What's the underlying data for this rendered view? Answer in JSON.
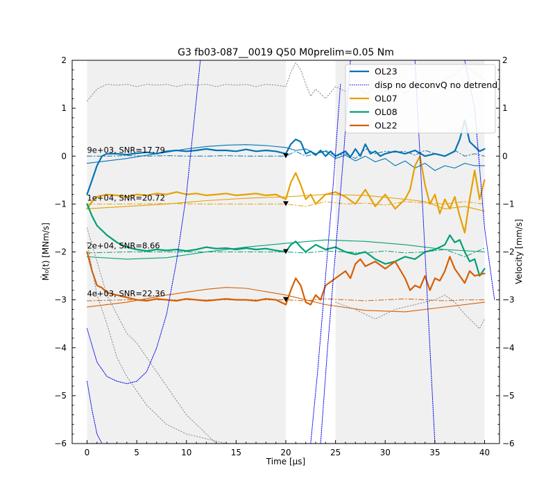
{
  "chart_data": {
    "type": "line",
    "title": "G3 fb03-087__0019 Q50 M0prelim=0.05 Nm",
    "xlabel": "Time [μs]",
    "ylabel_left": "Ṁ₀(t) [MNm/s]",
    "ylabel_right": "Velocity [mm/s]",
    "xlim": [
      -1.5,
      41.5
    ],
    "ylim": [
      -6,
      2
    ],
    "x_ticks": [
      "0",
      "5",
      "10",
      "15",
      "20",
      "25",
      "30",
      "35",
      "40"
    ],
    "y_ticks": [
      "−6",
      "−5",
      "−4",
      "−3",
      "−2",
      "−1",
      "0",
      "1",
      "2"
    ],
    "shaded_regions": [
      [
        0,
        20
      ],
      [
        25,
        40
      ]
    ],
    "legend": [
      "OL23",
      "disp no deconvQ no detrend",
      "OL07",
      "OL08",
      "OL22"
    ],
    "legend_position": "top-right",
    "colors": {
      "OL23": "#0072b2",
      "OL07": "#e69f00",
      "OL08": "#009e73",
      "OL22": "#d55e00",
      "disp": "#0000ee",
      "grey": "#888888",
      "shade": "#f0f0f0"
    },
    "annotations": [
      {
        "text": "9e+03, SNR=17.79",
        "x": 0,
        "y": 0.1
      },
      {
        "text": "1e+04, SNR=20.72",
        "x": 0,
        "y": -0.9
      },
      {
        "text": "2e+04, SNR=8.66",
        "x": 0,
        "y": -1.9
      },
      {
        "text": "4e+03, SNR=22.36",
        "x": 0,
        "y": -2.9
      }
    ],
    "markers": [
      {
        "x": 20,
        "y": 0
      },
      {
        "x": 20,
        "y": -1
      },
      {
        "x": 20,
        "y": -2
      },
      {
        "x": 20,
        "y": -3
      }
    ],
    "series": [
      {
        "name": "OL23",
        "color": "#0072b2",
        "width": 2.2,
        "dash": "",
        "x": [
          0,
          0.5,
          1,
          1.5,
          2,
          3,
          4,
          5,
          6,
          7,
          8,
          9,
          10,
          11,
          12,
          13,
          14,
          15,
          16,
          17,
          18,
          19,
          20,
          20.5,
          21,
          21.5,
          22,
          22.5,
          23,
          23.5,
          24,
          24.5,
          25,
          25.5,
          26,
          26.5,
          27,
          27.5,
          28,
          28.5,
          29,
          29.5,
          30,
          31,
          32,
          33,
          34,
          35,
          36,
          37,
          37.5,
          38,
          38.5,
          39,
          39.5,
          40
        ],
        "y": [
          -0.8,
          -0.5,
          -0.2,
          0,
          0.05,
          0.05,
          0.03,
          0.06,
          0.08,
          0.05,
          0.1,
          0.12,
          0.1,
          0.12,
          0.15,
          0.12,
          0.12,
          0.1,
          0.14,
          0.1,
          0.12,
          0.1,
          0.05,
          0.25,
          0.35,
          0.3,
          0.05,
          0.1,
          0.02,
          0.12,
          0.0,
          0.1,
          0.0,
          0.05,
          0.1,
          -0.02,
          0.15,
          0.0,
          0.25,
          0.05,
          0.1,
          0.0,
          0.05,
          0.1,
          0.05,
          0.12,
          0.0,
          0.05,
          0.0,
          0.1,
          0.35,
          0.75,
          0.3,
          0.2,
          0.1,
          0.15
        ]
      },
      {
        "name": "",
        "color": "#0072b2",
        "width": 1.1,
        "dash": "",
        "x": [
          0,
          2,
          4,
          6,
          8,
          10,
          12,
          14,
          16,
          18,
          20,
          21,
          22,
          23,
          24,
          25,
          26,
          27,
          28,
          29,
          30,
          31,
          32,
          33,
          34,
          35,
          36,
          37,
          38,
          39,
          40
        ],
        "y": [
          -0.15,
          -0.1,
          -0.05,
          0.02,
          0.08,
          0.15,
          0.2,
          0.23,
          0.24,
          0.22,
          0.18,
          0.12,
          0.15,
          0.05,
          0.1,
          -0.05,
          0.02,
          -0.1,
          0.0,
          -0.12,
          -0.05,
          -0.2,
          -0.1,
          -0.25,
          -0.15,
          -0.3,
          -0.2,
          -0.25,
          -0.15,
          -0.2,
          -0.2
        ]
      },
      {
        "name": "",
        "color": "#0072b2",
        "width": 1.0,
        "dash": "7,3,1.5,3",
        "x": [
          0,
          2,
          4,
          6,
          8,
          10,
          12,
          14,
          16,
          18,
          20,
          21,
          22,
          23,
          24,
          25,
          26,
          27,
          28,
          29,
          30,
          31,
          32,
          33,
          34,
          35,
          36,
          37,
          38,
          39,
          40
        ],
        "y": [
          0.0,
          0.0,
          0.01,
          0.0,
          0.01,
          0.0,
          0.0,
          0.01,
          0.0,
          0.0,
          0.0,
          0.1,
          0.0,
          0.05,
          0.12,
          0.0,
          0.05,
          -0.05,
          0.15,
          0.05,
          0.1,
          0.08,
          0.1,
          0.02,
          0.12,
          0.05,
          0.0,
          0.12,
          0.0,
          0.05,
          0.0
        ]
      },
      {
        "name": "OL07",
        "color": "#e69f00",
        "width": 2.2,
        "dash": "",
        "x": [
          0,
          0.5,
          1,
          2,
          3,
          4,
          5,
          6,
          7,
          8,
          9,
          10,
          11,
          12,
          13,
          14,
          15,
          16,
          17,
          18,
          19,
          20,
          20.5,
          21,
          21.5,
          22,
          22.5,
          23,
          24,
          25,
          26,
          27,
          28,
          29,
          30,
          31,
          32,
          32.5,
          33,
          33.5,
          34,
          34.5,
          35,
          35.5,
          36,
          36.5,
          37,
          37.5,
          38,
          38.5,
          39,
          39.5,
          40
        ],
        "y": [
          -1.1,
          -0.95,
          -0.85,
          -0.8,
          -0.82,
          -0.85,
          -0.8,
          -0.82,
          -0.78,
          -0.8,
          -0.75,
          -0.8,
          -0.78,
          -0.82,
          -0.8,
          -0.78,
          -0.82,
          -0.8,
          -0.78,
          -0.82,
          -0.8,
          -0.9,
          -0.55,
          -0.35,
          -0.6,
          -0.9,
          -0.8,
          -1.0,
          -0.8,
          -0.75,
          -0.85,
          -1.0,
          -0.7,
          -1.05,
          -0.8,
          -1.1,
          -0.9,
          -0.7,
          -0.2,
          0.0,
          -0.6,
          -1.0,
          -0.8,
          -1.2,
          -0.9,
          -1.1,
          -0.85,
          -1.25,
          -1.6,
          -0.9,
          -0.3,
          -0.9,
          -0.5
        ]
      },
      {
        "name": "",
        "color": "#e69f00",
        "width": 1.1,
        "dash": "",
        "x": [
          0,
          4,
          8,
          12,
          16,
          20,
          24,
          28,
          32,
          34,
          36,
          38,
          40
        ],
        "y": [
          -1.1,
          -1.05,
          -1.0,
          -0.93,
          -0.88,
          -0.85,
          -0.8,
          -0.82,
          -0.9,
          -0.95,
          -1.1,
          -1.05,
          -1.15
        ]
      },
      {
        "name": "",
        "color": "#e69f00",
        "width": 1.0,
        "dash": "7,3,1.5,3",
        "x": [
          0,
          4,
          8,
          12,
          16,
          20,
          22,
          24,
          26,
          28,
          30,
          32,
          34,
          36,
          38,
          40
        ],
        "y": [
          -1.0,
          -1.0,
          -0.99,
          -1.0,
          -1.0,
          -1.0,
          -1.05,
          -0.95,
          -1.0,
          -0.98,
          -1.02,
          -0.95,
          -0.98,
          -1.0,
          -0.95,
          -1.0
        ]
      },
      {
        "name": "OL08",
        "color": "#009e73",
        "width": 2.2,
        "dash": "",
        "x": [
          0,
          0.5,
          1,
          2,
          3,
          4,
          5,
          6,
          7,
          8,
          9,
          10,
          11,
          12,
          13,
          14,
          15,
          16,
          17,
          18,
          19,
          20,
          20.5,
          21,
          21.5,
          22,
          23,
          24,
          25,
          26,
          27,
          28,
          29,
          30,
          31,
          32,
          33,
          34,
          35,
          36,
          36.5,
          37,
          37.5,
          38,
          38.5,
          39,
          39.5,
          40
        ],
        "y": [
          -1.0,
          -1.25,
          -1.45,
          -1.65,
          -1.8,
          -1.9,
          -1.95,
          -1.98,
          -1.95,
          -1.97,
          -1.95,
          -1.98,
          -1.95,
          -1.9,
          -1.93,
          -1.92,
          -1.95,
          -1.92,
          -1.95,
          -1.93,
          -1.97,
          -2.0,
          -1.85,
          -1.78,
          -1.9,
          -2.0,
          -1.85,
          -1.95,
          -1.9,
          -2.0,
          -2.05,
          -2.0,
          -2.15,
          -2.25,
          -2.2,
          -2.1,
          -2.15,
          -2.0,
          -1.95,
          -1.85,
          -1.65,
          -1.8,
          -1.75,
          -2.0,
          -2.2,
          -2.15,
          -2.5,
          -2.35
        ]
      },
      {
        "name": "",
        "color": "#009e73",
        "width": 1.1,
        "dash": "",
        "x": [
          0,
          4,
          8,
          12,
          16,
          20,
          24,
          28,
          32,
          36,
          40
        ],
        "y": [
          -2.1,
          -2.15,
          -2.12,
          -2.0,
          -1.9,
          -1.82,
          -1.75,
          -1.78,
          -1.85,
          -1.95,
          -2.0
        ]
      },
      {
        "name": "",
        "color": "#009e73",
        "width": 1.0,
        "dash": "7,3,1.5,3",
        "x": [
          0,
          4,
          8,
          12,
          16,
          20,
          22,
          24,
          26,
          28,
          30,
          32,
          34,
          36,
          38,
          40
        ],
        "y": [
          -2.02,
          -2.0,
          -2.0,
          -2.0,
          -2.0,
          -2.0,
          -2.02,
          -1.98,
          -2.0,
          -2.02,
          -1.98,
          -2.02,
          -2.0,
          -1.95,
          -2.1,
          -1.92
        ]
      },
      {
        "name": "OL22",
        "color": "#d55e00",
        "width": 2.2,
        "dash": "",
        "x": [
          0,
          0.5,
          1,
          1.5,
          2,
          3,
          4,
          5,
          6,
          7,
          8,
          9,
          10,
          11,
          12,
          13,
          14,
          15,
          16,
          17,
          18,
          19,
          20,
          20.5,
          21,
          21.5,
          22,
          22.5,
          23,
          23.5,
          24,
          25,
          26,
          26.5,
          27,
          27.5,
          28,
          29,
          30,
          31,
          32,
          32.5,
          33,
          33.5,
          34,
          34.5,
          35,
          35.5,
          36,
          36.5,
          37,
          38,
          38.5,
          39,
          40
        ],
        "y": [
          -2.0,
          -2.4,
          -2.7,
          -2.75,
          -2.85,
          -2.9,
          -2.95,
          -3.0,
          -3.02,
          -2.98,
          -3.0,
          -3.02,
          -2.98,
          -3.0,
          -3.02,
          -3.0,
          -2.98,
          -3.0,
          -3.0,
          -3.02,
          -2.98,
          -3.0,
          -3.1,
          -2.8,
          -2.55,
          -2.7,
          -3.05,
          -3.1,
          -2.9,
          -3.0,
          -2.7,
          -2.55,
          -2.4,
          -2.55,
          -2.25,
          -2.15,
          -2.3,
          -2.2,
          -2.35,
          -2.2,
          -2.55,
          -2.8,
          -2.7,
          -2.75,
          -2.5,
          -2.8,
          -2.55,
          -2.6,
          -2.4,
          -2.1,
          -2.35,
          -2.65,
          -2.4,
          -2.5,
          -2.45
        ]
      },
      {
        "name": "",
        "color": "#d55e00",
        "width": 1.1,
        "dash": "",
        "x": [
          0,
          4,
          8,
          12,
          14,
          16,
          20,
          24,
          28,
          32,
          36,
          40
        ],
        "y": [
          -3.15,
          -3.05,
          -2.9,
          -2.78,
          -2.74,
          -2.76,
          -2.9,
          -3.1,
          -3.22,
          -3.25,
          -3.15,
          -3.05
        ]
      },
      {
        "name": "",
        "color": "#d55e00",
        "width": 1.0,
        "dash": "7,3,1.5,3",
        "x": [
          0,
          4,
          8,
          12,
          16,
          20,
          22,
          24,
          26,
          28,
          30,
          32,
          34,
          36,
          38,
          40
        ],
        "y": [
          -3.02,
          -3.0,
          -3.0,
          -3.0,
          -3.0,
          -3.0,
          -3.02,
          -2.98,
          -3.0,
          -3.02,
          -3.0,
          -2.98,
          -3.0,
          -3.02,
          -3.0,
          -3.0
        ]
      },
      {
        "name": "",
        "color": "#888888",
        "width": 1.0,
        "dash": "1.5,2.5",
        "x": [
          0,
          1,
          2,
          3,
          4,
          5,
          6,
          7,
          8,
          9,
          10,
          11,
          12,
          13,
          14,
          15,
          16,
          17,
          18,
          19,
          20,
          20.5,
          21,
          21.5,
          22,
          22.5,
          23,
          24,
          25,
          26,
          27,
          28,
          29,
          30,
          31,
          32,
          33,
          34,
          35,
          36,
          37,
          38,
          39,
          40
        ],
        "y": [
          1.15,
          1.4,
          1.5,
          1.48,
          1.5,
          1.45,
          1.5,
          1.48,
          1.5,
          1.45,
          1.5,
          1.48,
          1.5,
          1.45,
          1.5,
          1.48,
          1.5,
          1.45,
          1.5,
          1.48,
          1.45,
          1.75,
          1.95,
          1.8,
          1.5,
          1.25,
          1.4,
          1.2,
          1.45,
          1.35,
          1.5,
          1.3,
          1.45,
          1.35,
          1.5,
          1.3,
          1.5,
          1.35,
          1.5,
          1.6,
          1.7,
          1.9,
          1.75,
          1.6
        ]
      },
      {
        "name": "",
        "color": "#888888",
        "width": 1.0,
        "dash": "1.5,2.5",
        "x": [
          0,
          1,
          2,
          3,
          4,
          5,
          6,
          7,
          8,
          9,
          10,
          11,
          12,
          13
        ],
        "y": [
          -1.5,
          -2.2,
          -2.9,
          -3.3,
          -3.7,
          -3.9,
          -4.2,
          -4.5,
          -4.8,
          -5.1,
          -5.4,
          -5.6,
          -5.8,
          -6.0
        ]
      },
      {
        "name": "",
        "color": "#888888",
        "width": 1.0,
        "dash": "1.5,2.5",
        "x": [
          0,
          1,
          2,
          3,
          4,
          5,
          6,
          7,
          8,
          9,
          10,
          11,
          12,
          13,
          14
        ],
        "y": [
          -1.8,
          -2.9,
          -3.5,
          -4.2,
          -4.6,
          -4.9,
          -5.2,
          -5.4,
          -5.6,
          -5.7,
          -5.8,
          -5.85,
          -5.9,
          -5.95,
          -6.0
        ]
      },
      {
        "name": "",
        "color": "#888888",
        "width": 1.0,
        "dash": "1.5,2.5",
        "x": [
          25,
          27,
          29,
          31,
          33,
          35,
          36,
          37,
          38,
          39,
          39.5,
          40
        ],
        "y": [
          -3.05,
          -3.2,
          -3.4,
          -3.2,
          -3.1,
          -3.0,
          -2.9,
          -3.05,
          -3.3,
          -3.5,
          -3.6,
          -3.4
        ]
      },
      {
        "name": "disp no deconvQ no detrend",
        "color": "#0000ee",
        "width": 1.0,
        "dash": "1.5,1.5",
        "x": [
          0,
          1,
          2,
          3,
          4,
          5,
          6,
          7,
          8,
          9,
          10,
          10.5,
          11,
          11.5,
          12
        ],
        "y": [
          -3.6,
          -4.3,
          -4.6,
          -4.7,
          -4.75,
          -4.7,
          -4.5,
          -4.0,
          -3.3,
          -2.2,
          -0.8,
          0.2,
          1.2,
          2.2,
          3.0
        ]
      },
      {
        "name": "",
        "color": "#0000ee",
        "width": 1.0,
        "dash": "1.5,1.5",
        "x": [
          0,
          0.5,
          1,
          1.5
        ],
        "y": [
          -4.7,
          -5.3,
          -5.8,
          -6.0
        ]
      },
      {
        "name": "",
        "color": "#0000ee",
        "width": 1.0,
        "dash": "1.5,1.5",
        "x": [
          22.5,
          23.2,
          24,
          24.8,
          25.5
        ],
        "y": [
          -6.0,
          -4.5,
          -2.5,
          -0.5,
          1.5
        ]
      },
      {
        "name": "",
        "color": "#0000ee",
        "width": 1.0,
        "dash": "1.5,1.5",
        "x": [
          23.5,
          24.2,
          25,
          25.8,
          26.5
        ],
        "y": [
          -6.0,
          -4.0,
          -2.0,
          0.0,
          2.0
        ]
      },
      {
        "name": "",
        "color": "#0000ee",
        "width": 1.0,
        "dash": "1.5,1.5",
        "x": [
          33,
          33.5,
          34,
          34.5,
          35
        ],
        "y": [
          2.0,
          0.0,
          -2.0,
          -4.0,
          -6.0
        ]
      },
      {
        "name": "",
        "color": "#0000ee",
        "width": 1.0,
        "dash": "1.5,1.5",
        "x": [
          38,
          39,
          40,
          41
        ],
        "y": [
          2.0,
          1.0,
          -1.5,
          -3.0
        ]
      }
    ]
  }
}
